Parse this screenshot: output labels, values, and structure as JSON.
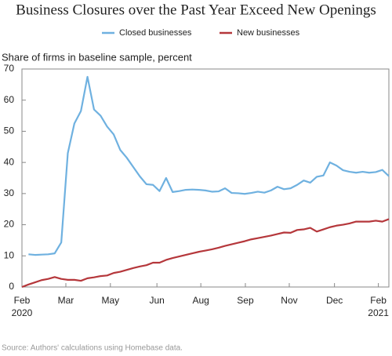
{
  "chart_data": {
    "type": "line",
    "title": "Business Closures over the Past Year Exceed New Openings",
    "ylabel": "Share of firms in baseline sample, percent",
    "source": "Source: Authors' calculations using Homebase data.",
    "x": [
      0,
      1,
      2,
      3,
      4,
      5,
      6,
      7,
      8,
      9,
      10,
      11,
      12,
      13,
      14,
      15,
      16,
      17,
      18,
      19,
      20,
      21,
      22,
      23,
      24,
      25,
      26,
      27,
      28,
      29,
      30,
      31,
      32,
      33,
      34,
      35,
      36,
      37,
      38,
      39,
      40,
      41,
      42,
      43,
      44,
      45,
      46,
      47,
      48,
      49,
      50,
      51,
      52,
      53,
      54,
      55,
      56
    ],
    "xlim": [
      0,
      56
    ],
    "xticks": [
      {
        "value": 0,
        "label": "Feb 2020"
      },
      {
        "value": 6.7,
        "label": "Mar"
      },
      {
        "value": 13.5,
        "label": "May"
      },
      {
        "value": 20.6,
        "label": "Jun"
      },
      {
        "value": 27.3,
        "label": "Aug"
      },
      {
        "value": 34.1,
        "label": "Sep"
      },
      {
        "value": 40.8,
        "label": "Nov"
      },
      {
        "value": 47.7,
        "label": "Dec"
      },
      {
        "value": 54.4,
        "label": "Feb 2021"
      }
    ],
    "ylim": [
      0,
      70
    ],
    "yticks": [
      0,
      10,
      20,
      30,
      40,
      50,
      60,
      70
    ],
    "series": [
      {
        "name": "Closed businesses",
        "color": "#6fb1e0",
        "values": [
          null,
          10.5,
          10.3,
          10.4,
          10.5,
          10.8,
          14.3,
          43,
          52.5,
          56.5,
          67.5,
          57,
          55,
          51.5,
          49,
          44,
          41.5,
          38.5,
          35.5,
          33,
          32.8,
          30.8,
          35,
          30.5,
          30.8,
          31.2,
          31.3,
          31.2,
          31,
          30.6,
          30.7,
          31.7,
          30.2,
          30.1,
          29.9,
          30.2,
          30.6,
          30.3,
          31,
          32.2,
          31.4,
          31.7,
          32.8,
          34.2,
          33.5,
          35.4,
          35.8,
          40,
          39,
          37.5,
          37,
          36.7,
          37,
          36.7,
          36.9,
          37.6,
          35.6
        ]
      },
      {
        "name": "New businesses",
        "color": "#b5373b",
        "values": [
          0,
          0.8,
          1.5,
          2.2,
          2.6,
          3.2,
          2.6,
          2.3,
          2.3,
          2.0,
          2.8,
          3.1,
          3.5,
          3.7,
          4.5,
          4.9,
          5.5,
          6.1,
          6.6,
          7.0,
          7.8,
          7.8,
          8.7,
          9.3,
          9.8,
          10.3,
          10.8,
          11.3,
          11.7,
          12.1,
          12.6,
          13.2,
          13.7,
          14.2,
          14.7,
          15.3,
          15.7,
          16.1,
          16.5,
          17,
          17.5,
          17.4,
          18.3,
          18.5,
          19,
          17.8,
          18.5,
          19.2,
          19.7,
          20,
          20.4,
          21,
          21,
          21.0,
          21.3,
          21.0,
          21.8
        ]
      }
    ]
  }
}
